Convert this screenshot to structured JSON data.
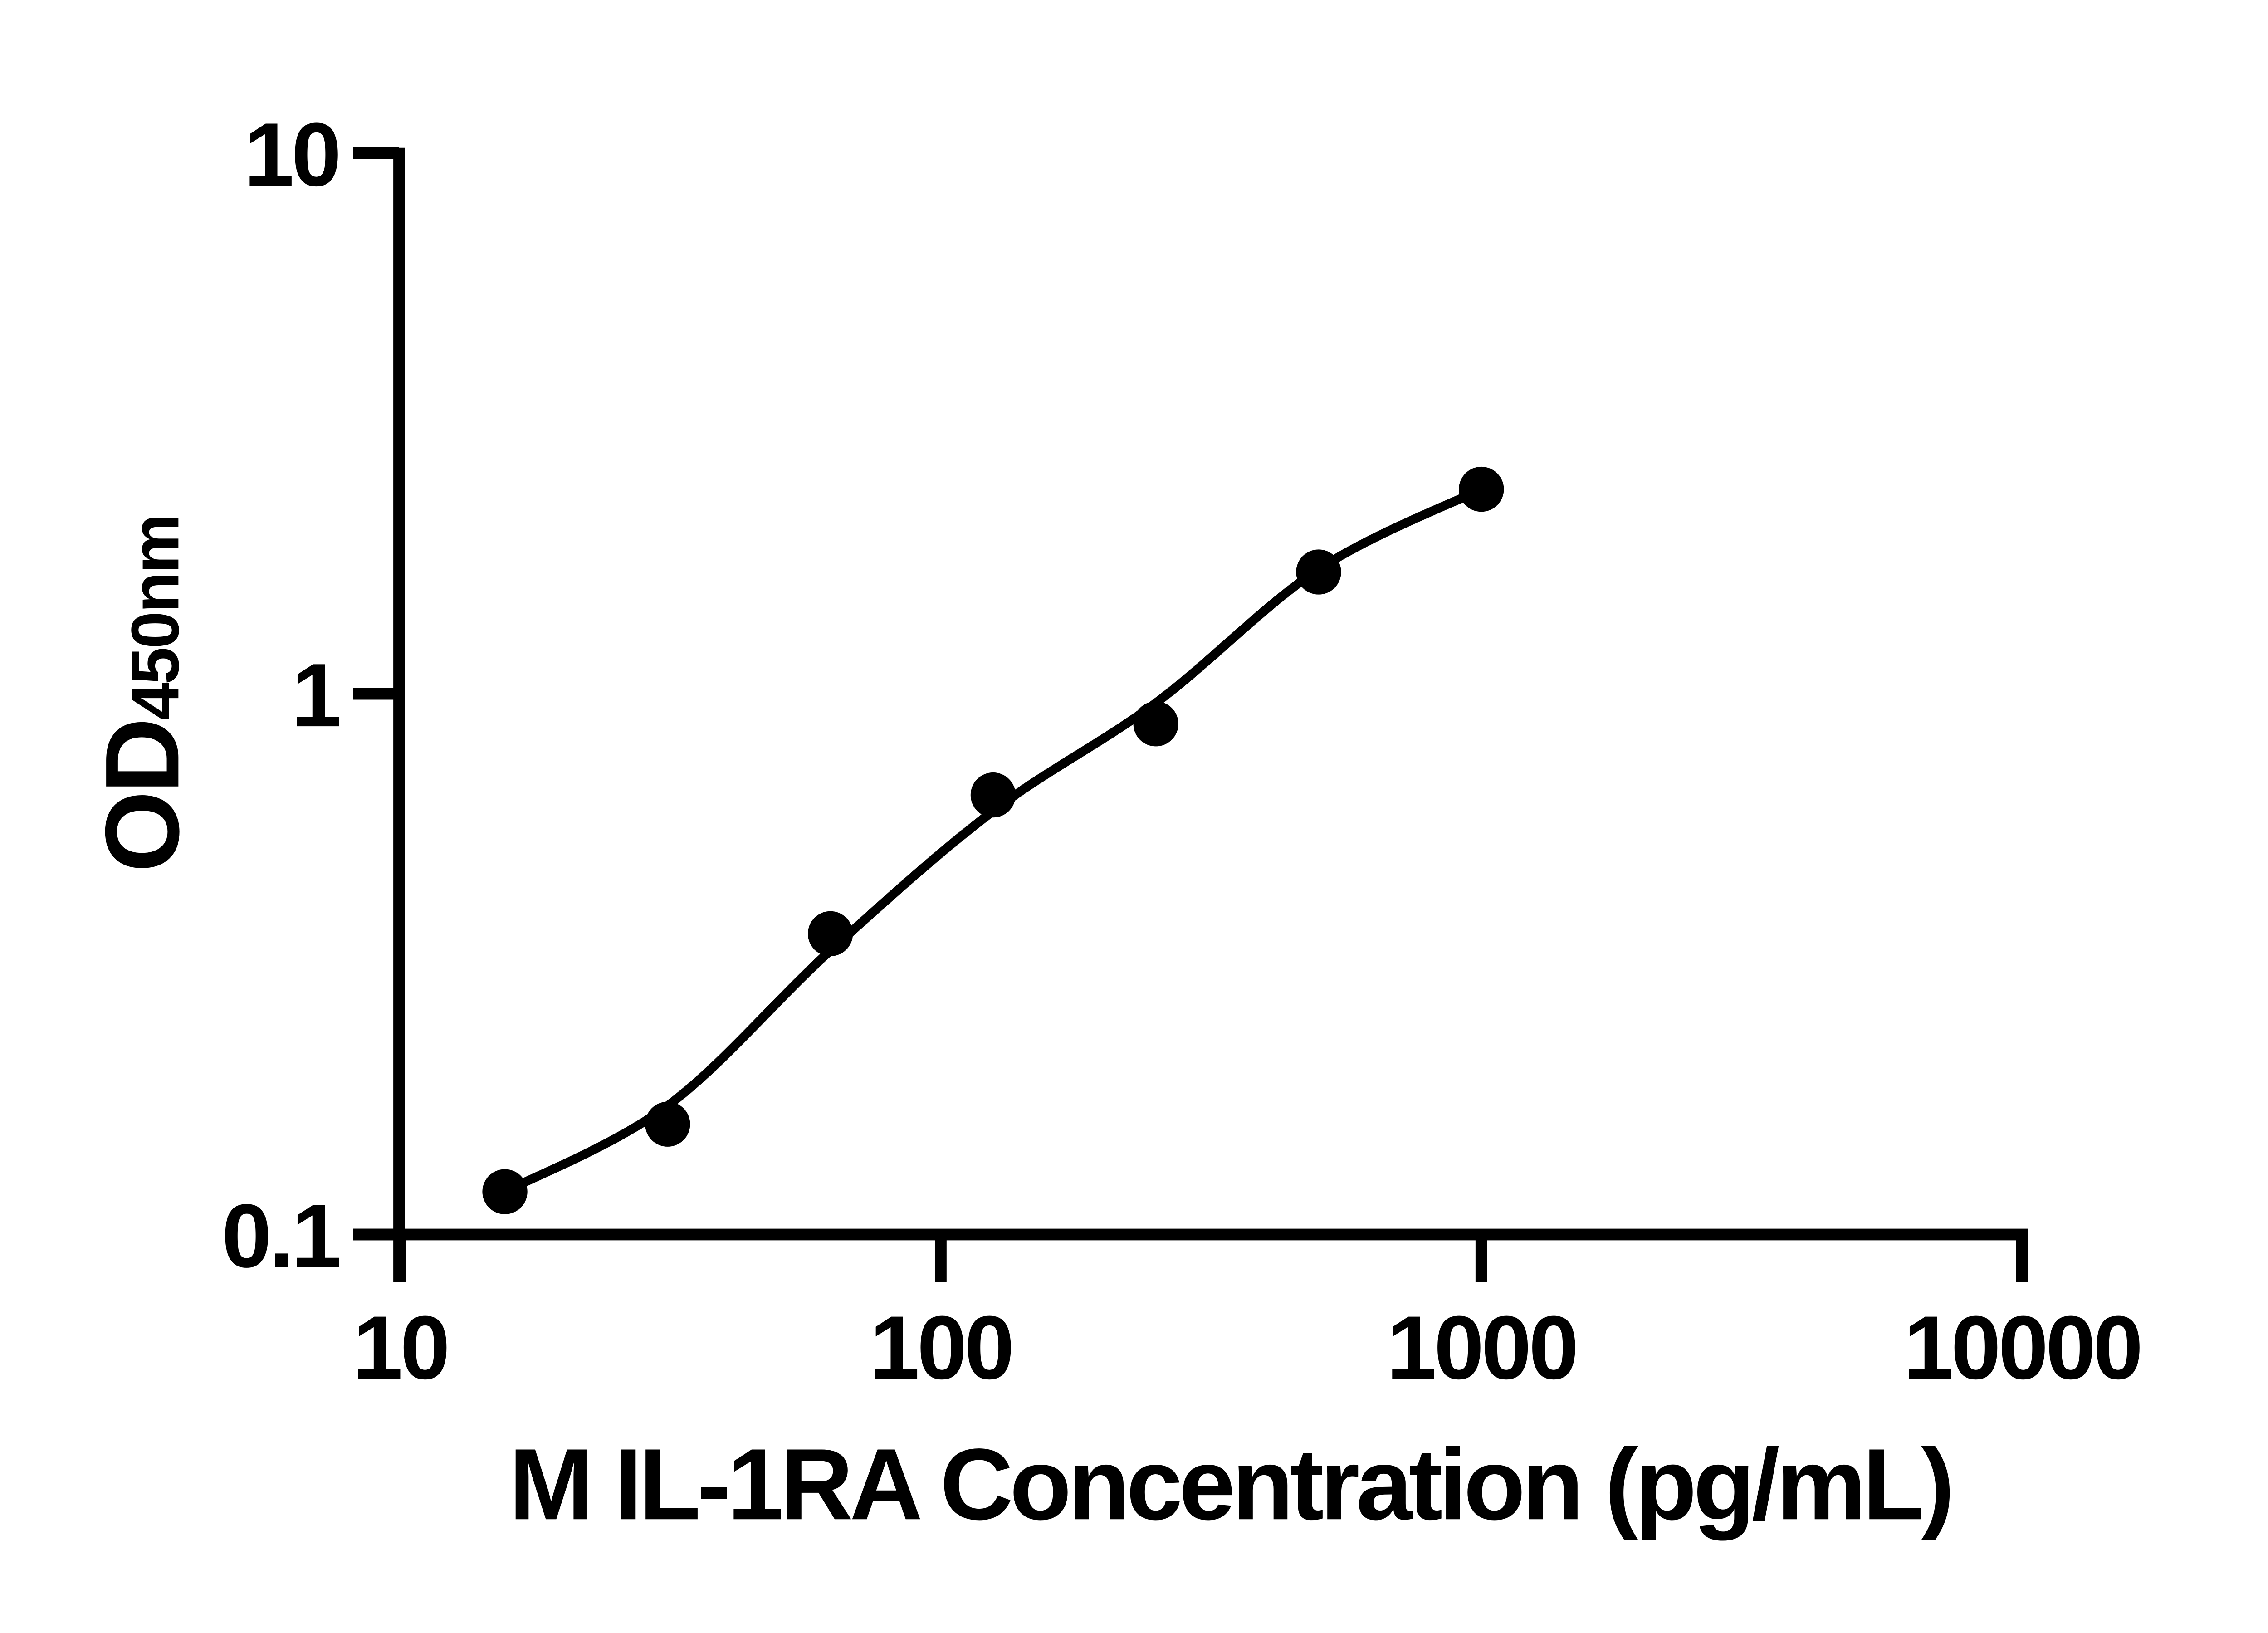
{
  "figure": {
    "background_color": "#ffffff",
    "foreground_color": "#000000"
  },
  "chart_data": {
    "type": "scatter",
    "title": "",
    "xlabel": "M IL-1RA Concentration (pg/mL)",
    "ylabel_main": "OD",
    "ylabel_sub": "450nm",
    "x_scale": "log10",
    "y_scale": "log10",
    "xlim": [
      10,
      10000
    ],
    "ylim": [
      0.1,
      10
    ],
    "x_tick_labels": [
      "10",
      "100",
      "1000",
      "10000"
    ],
    "x_tick_values": [
      10,
      100,
      1000,
      10000
    ],
    "y_tick_labels": [
      "10",
      "1",
      "0.1"
    ],
    "y_tick_values": [
      10,
      1,
      0.1
    ],
    "grid": false,
    "legend_position": "none",
    "marker_color": "#000000",
    "line_color": "#000000",
    "series": [
      {
        "name": "standard-points",
        "marker": "filled-circle",
        "x": [
          15.625,
          31.25,
          62.5,
          125,
          250,
          500,
          1000
        ],
        "y": [
          0.12,
          0.16,
          0.36,
          0.65,
          0.88,
          1.68,
          2.39
        ]
      }
    ],
    "fit_curve": {
      "name": "fitted-standard-curve",
      "x": [
        15.625,
        31.25,
        62.5,
        125,
        250,
        500,
        1000
      ],
      "y": [
        0.12,
        0.173,
        0.335,
        0.607,
        0.962,
        1.7,
        2.39
      ]
    }
  }
}
